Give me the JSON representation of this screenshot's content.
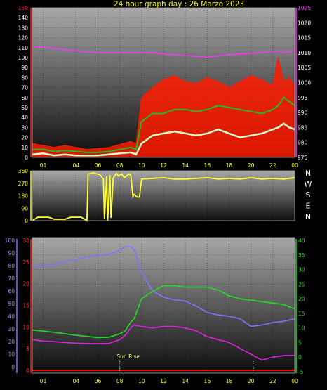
{
  "title": "24 hour graph day : 26 Marzo 2023",
  "colors": {
    "wind_max": "#ff1a00",
    "wind_avg": "#22bb22",
    "wind_min": "#ccffcc",
    "pressure": "#ff33ff",
    "direction": "#ffff33",
    "humidity": "#7777ff",
    "temp": "#22dd22",
    "dewpoint": "#dd22dd",
    "rain": "#ff0000",
    "left_axis_top": "#ff2020",
    "right_axis_top": "#ff33ff"
  },
  "chart_data": [
    {
      "type": "line",
      "id": "wind-pressure",
      "x_ticks": [
        "01",
        "04",
        "06",
        "08",
        "10",
        "12",
        "14",
        "16",
        "18",
        "20",
        "22",
        "00"
      ],
      "y_left_ticks": [
        "0",
        "10",
        "20",
        "30",
        "40",
        "50",
        "60",
        "70",
        "80",
        "90",
        "100",
        "110",
        "120",
        "130",
        "140",
        "150"
      ],
      "y_right_ticks": [
        "975",
        "980",
        "985",
        "990",
        "995",
        "1000",
        "1005",
        "1010",
        "1015",
        "1020",
        "1025"
      ],
      "ylim_left": [
        0,
        150
      ],
      "ylim_right": [
        975,
        1025
      ],
      "hours": [
        0,
        1,
        2,
        3,
        4,
        5,
        6,
        7,
        8,
        9,
        9.5,
        10,
        11,
        12,
        13,
        14,
        15,
        16,
        17,
        18,
        19,
        20,
        21,
        22,
        22.5,
        23,
        23.5,
        24
      ],
      "series": [
        {
          "key": "wind_max",
          "axis": "left",
          "values": [
            14,
            12,
            10,
            12,
            10,
            8,
            9,
            10,
            13,
            16,
            14,
            60,
            70,
            78,
            82,
            76,
            74,
            80,
            76,
            70,
            76,
            82,
            78,
            72,
            100,
            76,
            80,
            72
          ]
        },
        {
          "key": "wind_avg",
          "axis": "left",
          "values": [
            8,
            8,
            6,
            7,
            6,
            5,
            5,
            6,
            8,
            10,
            8,
            36,
            44,
            44,
            48,
            48,
            46,
            48,
            52,
            50,
            48,
            46,
            44,
            48,
            52,
            60,
            56,
            52
          ]
        },
        {
          "key": "wind_min",
          "axis": "left",
          "values": [
            3,
            4,
            2,
            3,
            2,
            2,
            2,
            3,
            4,
            5,
            3,
            14,
            22,
            24,
            26,
            24,
            22,
            24,
            28,
            24,
            20,
            22,
            24,
            28,
            30,
            34,
            30,
            28
          ]
        },
        {
          "key": "pressure",
          "axis": "right",
          "values": [
            1012,
            1011.8,
            1011.5,
            1011,
            1010.6,
            1010.2,
            1010,
            1010,
            1010,
            1010,
            1010,
            1010,
            1010,
            1009.6,
            1009.3,
            1009,
            1008.7,
            1008.5,
            1008.9,
            1009.3,
            1009.6,
            1009.8,
            1010,
            1010.3,
            1010.6,
            1010,
            1010.2,
            1010.8
          ]
        }
      ]
    },
    {
      "type": "line",
      "id": "wind-direction",
      "y_ticks": [
        "0",
        "90",
        "180",
        "270",
        "360"
      ],
      "ylim": [
        0,
        360
      ],
      "compass": [
        "N",
        "W",
        "S",
        "E",
        "N"
      ],
      "hours": [
        0,
        0.5,
        1.5,
        2,
        3,
        3.5,
        4.5,
        5,
        5.1,
        5.6,
        6.2,
        6.5,
        6.6,
        6.8,
        6.9,
        7.1,
        7.2,
        7.4,
        7.6,
        7.7,
        7.9,
        8,
        8.2,
        8.4,
        8.6,
        8.8,
        9,
        9.2,
        9.3,
        9.6,
        9.8,
        10,
        11,
        12,
        13,
        14,
        15,
        16,
        17,
        18,
        19,
        20,
        21,
        22,
        23,
        24
      ],
      "values": [
        0,
        25,
        25,
        10,
        10,
        25,
        25,
        0,
        335,
        345,
        330,
        300,
        10,
        320,
        0,
        330,
        20,
        305,
        330,
        340,
        320,
        330,
        335,
        310,
        320,
        335,
        330,
        175,
        190,
        170,
        170,
        300,
        305,
        310,
        300,
        300,
        305,
        310,
        300,
        305,
        300,
        310,
        300,
        305,
        300,
        310
      ]
    },
    {
      "type": "line",
      "id": "temp-humidity",
      "x_ticks": [
        "01",
        "04",
        "06",
        "08",
        "10",
        "12",
        "14",
        "16",
        "18",
        "20",
        "22",
        "00"
      ],
      "annotation": "Sun Rise",
      "y_humidity_ticks": [
        "0",
        "10",
        "20",
        "30",
        "40",
        "50",
        "60",
        "70",
        "80",
        "90",
        "100"
      ],
      "y_temp_ticks": [
        "0",
        "5",
        "10",
        "15",
        "20",
        "25",
        "30"
      ],
      "y_right_ticks": [
        "-5",
        "0",
        "5",
        "10",
        "15",
        "20",
        "25",
        "30",
        "35",
        "40"
      ],
      "hours": [
        0,
        1,
        2,
        3,
        4,
        5,
        6,
        7,
        8,
        8.5,
        9,
        9.3,
        10,
        11,
        12,
        13,
        14,
        15,
        16,
        17,
        18,
        19,
        20,
        21,
        22,
        23,
        24
      ],
      "series": [
        {
          "key": "humidity",
          "axis": "humidity",
          "values": [
            79,
            80,
            81,
            83,
            85,
            87,
            88,
            89,
            92,
            95,
            95,
            93,
            75,
            60,
            55,
            53,
            52,
            48,
            43,
            41,
            40,
            38,
            32,
            33,
            35,
            36,
            38
          ]
        },
        {
          "key": "temp",
          "axis": "right",
          "values": [
            9.3,
            8.9,
            8.5,
            8.0,
            7.5,
            7.1,
            6.7,
            6.8,
            8.0,
            9.0,
            12,
            13,
            20,
            22.5,
            24.5,
            24.5,
            24,
            24,
            24,
            23,
            21,
            20,
            19.5,
            19,
            18.5,
            18,
            16.5
          ]
        },
        {
          "key": "dewpoint",
          "axis": "right",
          "values": [
            6,
            5.5,
            5.3,
            5,
            4.8,
            4.7,
            4.6,
            4.7,
            6,
            7.5,
            10,
            11,
            10.5,
            10,
            10.5,
            10.5,
            10,
            9,
            7,
            6,
            5,
            3,
            1,
            -1,
            0,
            0.5,
            0.6
          ]
        },
        {
          "key": "rain",
          "axis": "temp",
          "values": [
            0,
            0,
            0,
            0,
            0,
            0,
            0,
            0,
            0,
            0,
            0,
            0,
            0,
            0,
            0,
            0,
            0,
            0,
            0,
            0,
            0,
            0,
            0,
            0,
            0,
            0,
            0
          ]
        }
      ]
    }
  ]
}
